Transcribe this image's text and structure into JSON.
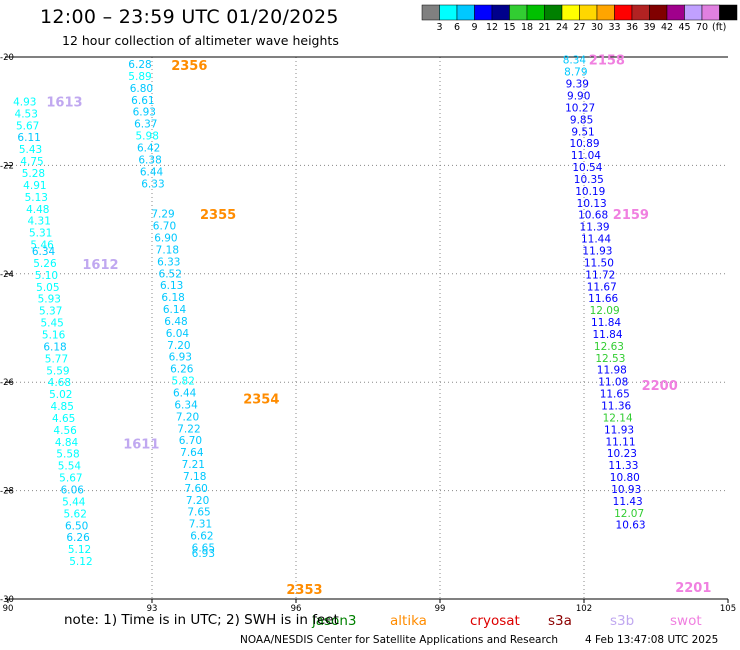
{
  "title": "12:00 – 23:59 UTC 01/20/2025",
  "subtitle": "12 hour collection of altimeter wave heights",
  "note": "note:  1) Time is in UTC; 2) SWH is in feet",
  "credit": "NOAA/NESDIS Center for Satellite Applications and Research",
  "timestamp": "4 Feb 13:47:08 UTC 2025",
  "colorbar": {
    "labels": [
      "3",
      "6",
      "9",
      "12",
      "15",
      "18",
      "21",
      "24",
      "27",
      "30",
      "33",
      "36",
      "39",
      "42",
      "45",
      "70"
    ],
    "unit": "(ft)",
    "colors": [
      "#808080",
      "#00ffff",
      "#00c8ff",
      "#0000ff",
      "#00008b",
      "#32cd32",
      "#00c000",
      "#008000",
      "#ffff00",
      "#ffd700",
      "#ffa500",
      "#ff0000",
      "#b22222",
      "#800000",
      "#a0008c",
      "#c0a0ff",
      "#e080e0",
      "#000000"
    ]
  },
  "satellites": [
    {
      "name": "jason3",
      "color": "#008000"
    },
    {
      "name": "altika",
      "color": "#ff8c00"
    },
    {
      "name": "cryosat",
      "color": "#dd0000"
    },
    {
      "name": "s3a",
      "color": "#8b0000"
    },
    {
      "name": "s3b",
      "color": "#c0a8f0"
    },
    {
      "name": "swot",
      "color": "#f080e0"
    }
  ],
  "chart_data": {
    "type": "scatter",
    "title": "12:00 – 23:59 UTC 01/20/2025",
    "subtitle": "12 hour collection of altimeter wave heights",
    "xlim": [
      90,
      105
    ],
    "ylim": [
      -30,
      -20
    ],
    "x_ticks": [
      "90",
      "93",
      "96",
      "99",
      "102",
      "105"
    ],
    "y_ticks": [
      "-20",
      "-22",
      "-24",
      "-26",
      "-28",
      "-30"
    ],
    "grid": true,
    "unit": "ft",
    "series": [
      {
        "name": "altika",
        "color": "#ff8c00",
        "pass_labels": [
          {
            "text": "2356",
            "lon": 93.4,
            "lat": -20.15
          },
          {
            "text": "2355",
            "lon": 94.0,
            "lat": -22.9
          },
          {
            "text": "2354",
            "lon": 94.9,
            "lat": -26.3
          },
          {
            "text": "2353",
            "lon": 95.8,
            "lat": -29.82
          }
        ],
        "points": [
          {
            "lat": -20.13,
            "lon": 92.75,
            "swh": "6.28",
            "color": "#00c8ff"
          },
          {
            "lat": -20.35,
            "lon": 92.75,
            "swh": "5.89",
            "color": "#00ffff"
          },
          {
            "lat": -20.57,
            "lon": 92.78,
            "swh": "6.80",
            "color": "#00c8ff"
          },
          {
            "lat": -20.79,
            "lon": 92.81,
            "swh": "6.61",
            "color": "#00c8ff"
          },
          {
            "lat": -21.01,
            "lon": 92.84,
            "swh": "6.93",
            "color": "#00c8ff"
          },
          {
            "lat": -21.23,
            "lon": 92.87,
            "swh": "6.37",
            "color": "#00c8ff"
          },
          {
            "lat": -21.45,
            "lon": 92.9,
            "swh": "5.98",
            "color": "#00ffff"
          },
          {
            "lat": -21.67,
            "lon": 92.93,
            "swh": "6.42",
            "color": "#00c8ff"
          },
          {
            "lat": -21.89,
            "lon": 92.96,
            "swh": "6.38",
            "color": "#00c8ff"
          },
          {
            "lat": -22.11,
            "lon": 92.99,
            "swh": "6.44",
            "color": "#00c8ff"
          },
          {
            "lat": -22.33,
            "lon": 93.02,
            "swh": "6.33",
            "color": "#00c8ff"
          },
          {
            "lat": -22.89,
            "lon": 93.23,
            "swh": "7.29",
            "color": "#00c8ff"
          },
          {
            "lat": -23.11,
            "lon": 93.26,
            "swh": "6.70",
            "color": "#00c8ff"
          },
          {
            "lat": -23.33,
            "lon": 93.29,
            "swh": "6.90",
            "color": "#00c8ff"
          },
          {
            "lat": -23.55,
            "lon": 93.32,
            "swh": "7.18",
            "color": "#00c8ff"
          },
          {
            "lat": -23.77,
            "lon": 93.35,
            "swh": "6.33",
            "color": "#00c8ff"
          },
          {
            "lat": -23.99,
            "lon": 93.38,
            "swh": "6.52",
            "color": "#00c8ff"
          },
          {
            "lat": -24.21,
            "lon": 93.41,
            "swh": "6.13",
            "color": "#00c8ff"
          },
          {
            "lat": -24.43,
            "lon": 93.44,
            "swh": "6.18",
            "color": "#00c8ff"
          },
          {
            "lat": -24.65,
            "lon": 93.47,
            "swh": "6.14",
            "color": "#00c8ff"
          },
          {
            "lat": -24.87,
            "lon": 93.5,
            "swh": "6.48",
            "color": "#00c8ff"
          },
          {
            "lat": -25.09,
            "lon": 93.53,
            "swh": "6.04",
            "color": "#00c8ff"
          },
          {
            "lat": -25.31,
            "lon": 93.56,
            "swh": "7.20",
            "color": "#00c8ff"
          },
          {
            "lat": -25.53,
            "lon": 93.59,
            "swh": "6.93",
            "color": "#00c8ff"
          },
          {
            "lat": -25.75,
            "lon": 93.62,
            "swh": "6.26",
            "color": "#00c8ff"
          },
          {
            "lat": -25.97,
            "lon": 93.65,
            "swh": "5.82",
            "color": "#00ffff"
          },
          {
            "lat": -26.19,
            "lon": 93.68,
            "swh": "6.44",
            "color": "#00c8ff"
          },
          {
            "lat": -26.41,
            "lon": 93.71,
            "swh": "6.34",
            "color": "#00c8ff"
          },
          {
            "lat": -26.63,
            "lon": 93.74,
            "swh": "7.20",
            "color": "#00c8ff"
          },
          {
            "lat": -26.85,
            "lon": 93.77,
            "swh": "7.22",
            "color": "#00c8ff"
          },
          {
            "lat": -27.07,
            "lon": 93.8,
            "swh": "6.70",
            "color": "#00c8ff"
          },
          {
            "lat": -27.29,
            "lon": 93.83,
            "swh": "7.64",
            "color": "#00c8ff"
          },
          {
            "lat": -27.51,
            "lon": 93.86,
            "swh": "7.21",
            "color": "#00c8ff"
          },
          {
            "lat": -27.73,
            "lon": 93.89,
            "swh": "7.18",
            "color": "#00c8ff"
          },
          {
            "lat": -27.95,
            "lon": 93.92,
            "swh": "7.60",
            "color": "#00c8ff"
          },
          {
            "lat": -28.17,
            "lon": 93.95,
            "swh": "7.20",
            "color": "#00c8ff"
          },
          {
            "lat": -28.39,
            "lon": 93.98,
            "swh": "7.65",
            "color": "#00c8ff"
          },
          {
            "lat": -28.61,
            "lon": 94.01,
            "swh": "7.31",
            "color": "#00c8ff"
          },
          {
            "lat": -28.83,
            "lon": 94.04,
            "swh": "6.62",
            "color": "#00c8ff"
          },
          {
            "lat": -29.05,
            "lon": 94.07,
            "swh": "6.65",
            "color": "#00c8ff"
          },
          {
            "lat": -29.15,
            "lon": 94.07,
            "swh": "6.93",
            "color": "#00c8ff"
          }
        ]
      },
      {
        "name": "s3b",
        "color": "#c0a8f0",
        "pass_labels": [
          {
            "text": "1613",
            "lon": 90.8,
            "lat": -20.82
          },
          {
            "text": "1612",
            "lon": 91.55,
            "lat": -23.82
          },
          {
            "text": "1611",
            "lon": 92.4,
            "lat": -27.13
          }
        ],
        "points": [
          {
            "lat": -20.82,
            "lon": 90.35,
            "swh": "4.93",
            "color": "#00ffff"
          },
          {
            "lat": -21.04,
            "lon": 90.38,
            "swh": "4.53",
            "color": "#00ffff"
          },
          {
            "lat": -21.26,
            "lon": 90.41,
            "swh": "5.67",
            "color": "#00ffff"
          },
          {
            "lat": -21.48,
            "lon": 90.44,
            "swh": "6.11",
            "color": "#00c8ff"
          },
          {
            "lat": -21.7,
            "lon": 90.47,
            "swh": "5.43",
            "color": "#00ffff"
          },
          {
            "lat": -21.92,
            "lon": 90.5,
            "swh": "4.75",
            "color": "#00ffff"
          },
          {
            "lat": -22.14,
            "lon": 90.53,
            "swh": "5.28",
            "color": "#00ffff"
          },
          {
            "lat": -22.36,
            "lon": 90.56,
            "swh": "4.91",
            "color": "#00ffff"
          },
          {
            "lat": -22.58,
            "lon": 90.59,
            "swh": "5.13",
            "color": "#00ffff"
          },
          {
            "lat": -22.8,
            "lon": 90.62,
            "swh": "4.48",
            "color": "#00ffff"
          },
          {
            "lat": -23.02,
            "lon": 90.65,
            "swh": "4.31",
            "color": "#00ffff"
          },
          {
            "lat": -23.24,
            "lon": 90.68,
            "swh": "5.31",
            "color": "#00ffff"
          },
          {
            "lat": -23.46,
            "lon": 90.71,
            "swh": "5.46",
            "color": "#00ffff"
          },
          {
            "lat": -23.58,
            "lon": 90.74,
            "swh": "6.34",
            "color": "#00c8ff"
          },
          {
            "lat": -23.8,
            "lon": 90.77,
            "swh": "5.26",
            "color": "#00ffff"
          },
          {
            "lat": -24.02,
            "lon": 90.8,
            "swh": "5.10",
            "color": "#00ffff"
          },
          {
            "lat": -24.24,
            "lon": 90.83,
            "swh": "5.05",
            "color": "#00ffff"
          },
          {
            "lat": -24.46,
            "lon": 90.86,
            "swh": "5.93",
            "color": "#00ffff"
          },
          {
            "lat": -24.68,
            "lon": 90.89,
            "swh": "5.37",
            "color": "#00ffff"
          },
          {
            "lat": -24.9,
            "lon": 90.92,
            "swh": "5.45",
            "color": "#00ffff"
          },
          {
            "lat": -25.12,
            "lon": 90.95,
            "swh": "5.16",
            "color": "#00ffff"
          },
          {
            "lat": -25.34,
            "lon": 90.98,
            "swh": "6.18",
            "color": "#00c8ff"
          },
          {
            "lat": -25.56,
            "lon": 91.01,
            "swh": "5.77",
            "color": "#00ffff"
          },
          {
            "lat": -25.78,
            "lon": 91.04,
            "swh": "5.59",
            "color": "#00ffff"
          },
          {
            "lat": -26.0,
            "lon": 91.07,
            "swh": "4.68",
            "color": "#00ffff"
          },
          {
            "lat": -26.22,
            "lon": 91.1,
            "swh": "5.02",
            "color": "#00ffff"
          },
          {
            "lat": -26.44,
            "lon": 91.13,
            "swh": "4.85",
            "color": "#00ffff"
          },
          {
            "lat": -26.66,
            "lon": 91.16,
            "swh": "4.65",
            "color": "#00ffff"
          },
          {
            "lat": -26.88,
            "lon": 91.19,
            "swh": "4.56",
            "color": "#00ffff"
          },
          {
            "lat": -27.1,
            "lon": 91.22,
            "swh": "4.84",
            "color": "#00ffff"
          },
          {
            "lat": -27.32,
            "lon": 91.25,
            "swh": "5.58",
            "color": "#00ffff"
          },
          {
            "lat": -27.54,
            "lon": 91.28,
            "swh": "5.54",
            "color": "#00ffff"
          },
          {
            "lat": -27.76,
            "lon": 91.31,
            "swh": "5.67",
            "color": "#00ffff"
          },
          {
            "lat": -27.98,
            "lon": 91.34,
            "swh": "6.06",
            "color": "#00c8ff"
          },
          {
            "lat": -28.2,
            "lon": 91.37,
            "swh": "5.44",
            "color": "#00ffff"
          },
          {
            "lat": -28.42,
            "lon": 91.4,
            "swh": "5.62",
            "color": "#00ffff"
          },
          {
            "lat": -28.64,
            "lon": 91.43,
            "swh": "6.50",
            "color": "#00c8ff"
          },
          {
            "lat": -28.86,
            "lon": 91.46,
            "swh": "6.26",
            "color": "#00c8ff"
          },
          {
            "lat": -29.08,
            "lon": 91.49,
            "swh": "5.12",
            "color": "#00ffff"
          },
          {
            "lat": -29.3,
            "lon": 91.52,
            "swh": "5.12",
            "color": "#00ffff"
          }
        ]
      },
      {
        "name": "swot",
        "color": "#f080e0",
        "pass_labels": [
          {
            "text": "2158",
            "lon": 102.1,
            "lat": -20.05
          },
          {
            "text": "2159",
            "lon": 102.6,
            "lat": -22.9
          },
          {
            "text": "2200",
            "lon": 103.2,
            "lat": -26.05
          },
          {
            "text": "2201",
            "lon": 103.9,
            "lat": -29.78
          }
        ],
        "points": [
          {
            "lat": -20.05,
            "lon": 101.8,
            "swh": "8.34",
            "color": "#00c8ff"
          },
          {
            "lat": -20.27,
            "lon": 101.83,
            "swh": "8.79",
            "color": "#00c8ff"
          },
          {
            "lat": -20.49,
            "lon": 101.86,
            "swh": "9.39",
            "color": "#0000ff"
          },
          {
            "lat": -20.71,
            "lon": 101.89,
            "swh": "9.90",
            "color": "#0000ff"
          },
          {
            "lat": -20.93,
            "lon": 101.92,
            "swh": "10.27",
            "color": "#0000ff"
          },
          {
            "lat": -21.15,
            "lon": 101.95,
            "swh": "9.85",
            "color": "#0000ff"
          },
          {
            "lat": -21.37,
            "lon": 101.98,
            "swh": "9.51",
            "color": "#0000ff"
          },
          {
            "lat": -21.59,
            "lon": 102.01,
            "swh": "10.89",
            "color": "#0000ff"
          },
          {
            "lat": -21.81,
            "lon": 102.04,
            "swh": "11.04",
            "color": "#0000ff"
          },
          {
            "lat": -22.03,
            "lon": 102.07,
            "swh": "10.54",
            "color": "#0000ff"
          },
          {
            "lat": -22.25,
            "lon": 102.1,
            "swh": "10.35",
            "color": "#0000ff"
          },
          {
            "lat": -22.47,
            "lon": 102.13,
            "swh": "10.19",
            "color": "#0000ff"
          },
          {
            "lat": -22.69,
            "lon": 102.16,
            "swh": "10.13",
            "color": "#0000ff"
          },
          {
            "lat": -22.91,
            "lon": 102.19,
            "swh": "10.68",
            "color": "#0000ff"
          },
          {
            "lat": -23.13,
            "lon": 102.22,
            "swh": "11.39",
            "color": "#0000ff"
          },
          {
            "lat": -23.35,
            "lon": 102.25,
            "swh": "11.44",
            "color": "#0000ff"
          },
          {
            "lat": -23.57,
            "lon": 102.28,
            "swh": "11.93",
            "color": "#0000ff"
          },
          {
            "lat": -23.79,
            "lon": 102.31,
            "swh": "11.50",
            "color": "#0000ff"
          },
          {
            "lat": -24.01,
            "lon": 102.34,
            "swh": "11.72",
            "color": "#0000ff"
          },
          {
            "lat": -24.23,
            "lon": 102.37,
            "swh": "11.67",
            "color": "#0000ff"
          },
          {
            "lat": -24.45,
            "lon": 102.4,
            "swh": "11.66",
            "color": "#0000ff"
          },
          {
            "lat": -24.67,
            "lon": 102.43,
            "swh": "12.09",
            "color": "#32cd32"
          },
          {
            "lat": -24.89,
            "lon": 102.46,
            "swh": "11.84",
            "color": "#0000ff"
          },
          {
            "lat": -25.11,
            "lon": 102.49,
            "swh": "11.84",
            "color": "#0000ff"
          },
          {
            "lat": -25.33,
            "lon": 102.52,
            "swh": "12.63",
            "color": "#32cd32"
          },
          {
            "lat": -25.55,
            "lon": 102.55,
            "swh": "12.53",
            "color": "#32cd32"
          },
          {
            "lat": -25.77,
            "lon": 102.58,
            "swh": "11.98",
            "color": "#0000ff"
          },
          {
            "lat": -25.99,
            "lon": 102.61,
            "swh": "11.08",
            "color": "#0000ff"
          },
          {
            "lat": -26.21,
            "lon": 102.64,
            "swh": "11.65",
            "color": "#0000ff"
          },
          {
            "lat": -26.43,
            "lon": 102.67,
            "swh": "11.36",
            "color": "#0000ff"
          },
          {
            "lat": -26.65,
            "lon": 102.7,
            "swh": "12.14",
            "color": "#32cd32"
          },
          {
            "lat": -26.87,
            "lon": 102.73,
            "swh": "11.93",
            "color": "#0000ff"
          },
          {
            "lat": -27.09,
            "lon": 102.76,
            "swh": "11.11",
            "color": "#0000ff"
          },
          {
            "lat": -27.31,
            "lon": 102.79,
            "swh": "10.23",
            "color": "#0000ff"
          },
          {
            "lat": -27.53,
            "lon": 102.82,
            "swh": "11.33",
            "color": "#0000ff"
          },
          {
            "lat": -27.75,
            "lon": 102.85,
            "swh": "10.80",
            "color": "#0000ff"
          },
          {
            "lat": -27.97,
            "lon": 102.88,
            "swh": "10.93",
            "color": "#0000ff"
          },
          {
            "lat": -28.19,
            "lon": 102.91,
            "swh": "11.43",
            "color": "#0000ff"
          },
          {
            "lat": -28.41,
            "lon": 102.94,
            "swh": "12.07",
            "color": "#32cd32"
          },
          {
            "lat": -28.63,
            "lon": 102.97,
            "swh": "10.63",
            "color": "#0000ff"
          }
        ]
      }
    ]
  }
}
